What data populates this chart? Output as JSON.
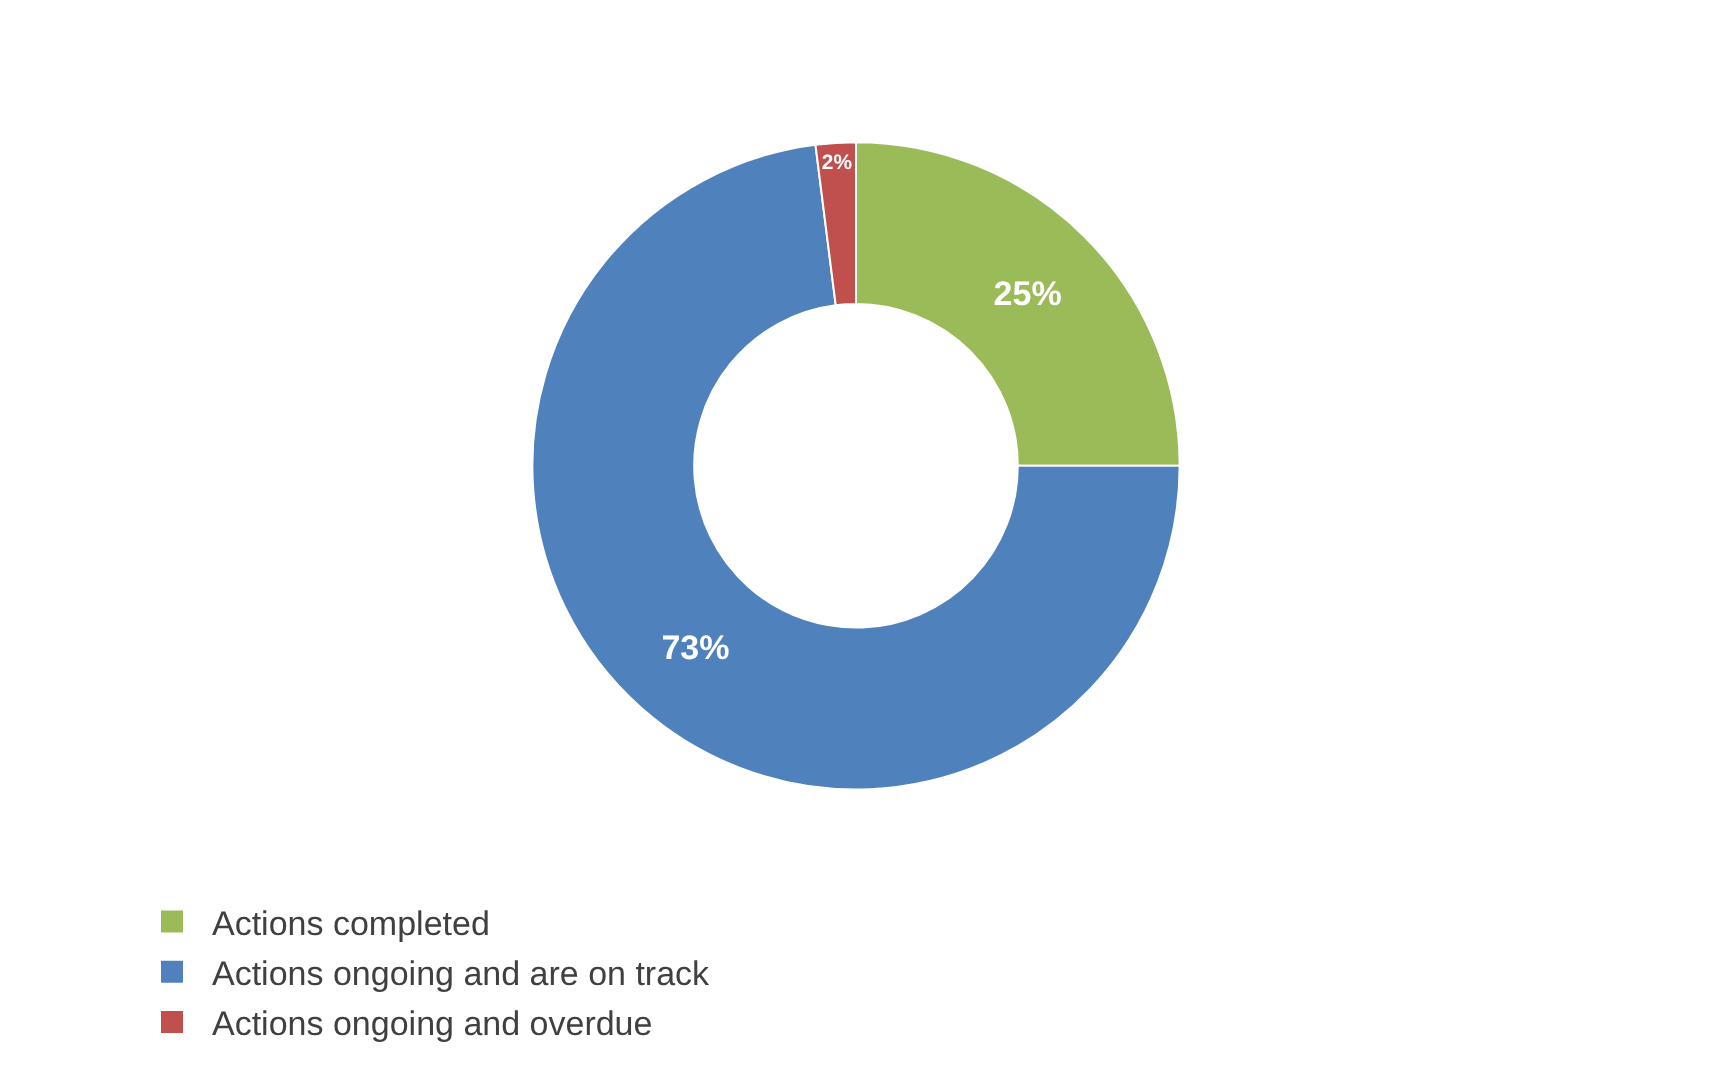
{
  "chart_data": {
    "type": "donut",
    "categories": [
      "Actions completed",
      "Actions ongoing and are on track",
      "Actions ongoing and overdue"
    ],
    "values": [
      25,
      73,
      2
    ],
    "colors": [
      "#9bbb59",
      "#4f81bd",
      "#c0504d"
    ],
    "value_labels": [
      "25%",
      "73%",
      "2%"
    ],
    "legend": "bottom"
  }
}
